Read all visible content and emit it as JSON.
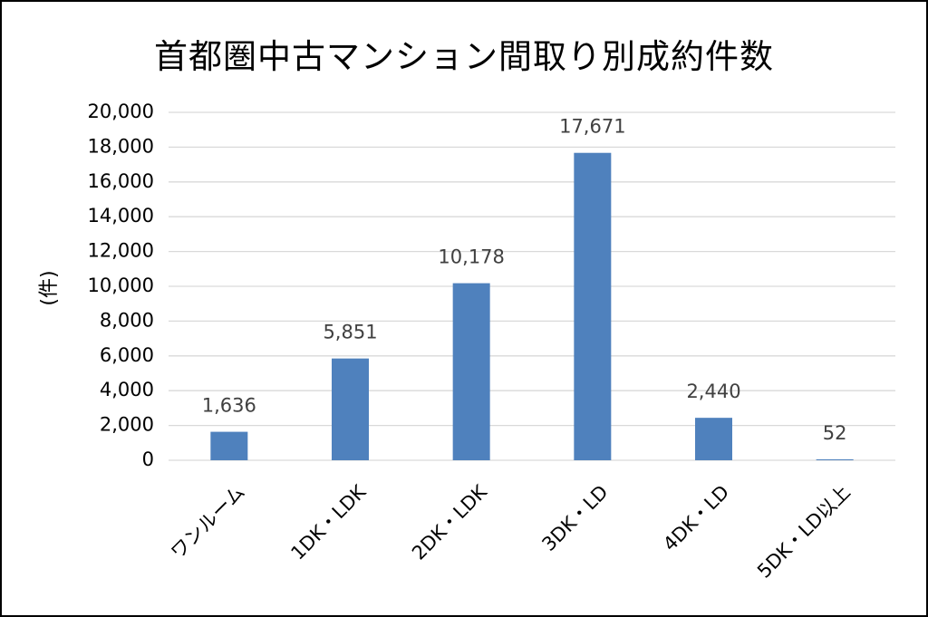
{
  "chart_data": {
    "type": "bar",
    "title": "首都圏中古マンション間取り別成約件数",
    "xlabel": "",
    "ylabel": "(件)",
    "categories": [
      "ワンルーム",
      "1DK・LDK",
      "2DK・LDK",
      "3DK・LD",
      "4DK・LD",
      "5DK・LD以上"
    ],
    "values": [
      1636,
      5851,
      10178,
      17671,
      2440,
      52
    ],
    "data_labels": [
      "1,636",
      "5,851",
      "10,178",
      "17,671",
      "2,440",
      "52"
    ],
    "ylim": [
      0,
      20000
    ],
    "yticks": [
      0,
      2000,
      4000,
      6000,
      8000,
      10000,
      12000,
      14000,
      16000,
      18000,
      20000
    ],
    "ytick_labels": [
      "0",
      "2,000",
      "4,000",
      "6,000",
      "8,000",
      "10,000",
      "12,000",
      "14,000",
      "16,000",
      "18,000",
      "20,000"
    ],
    "grid": true,
    "legend": "none",
    "colors": {
      "bar": "#4f81bd",
      "grid": "#d9d9d9",
      "axis_text": "#000000",
      "data_label_text": "#404040"
    }
  }
}
